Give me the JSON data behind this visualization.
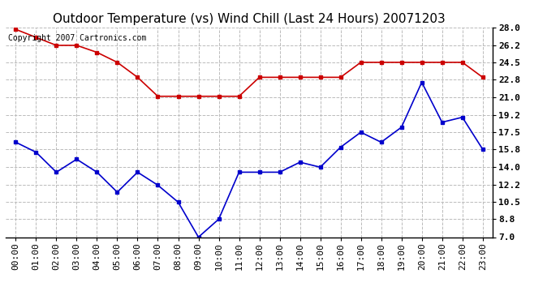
{
  "title": "Outdoor Temperature (vs) Wind Chill (Last 24 Hours) 20071203",
  "copyright_text": "Copyright 2007 Cartronics.com",
  "hours": [
    "00:00",
    "01:00",
    "02:00",
    "03:00",
    "04:00",
    "05:00",
    "06:00",
    "07:00",
    "08:00",
    "09:00",
    "10:00",
    "11:00",
    "12:00",
    "13:00",
    "14:00",
    "15:00",
    "16:00",
    "17:00",
    "18:00",
    "19:00",
    "20:00",
    "21:00",
    "22:00",
    "23:00"
  ],
  "red_data": [
    27.8,
    27.0,
    26.2,
    26.2,
    25.5,
    24.5,
    23.0,
    21.1,
    21.1,
    21.1,
    21.1,
    21.1,
    23.0,
    23.0,
    23.0,
    23.0,
    23.0,
    24.5,
    24.5,
    24.5,
    24.5,
    24.5,
    24.5,
    23.0
  ],
  "blue_data": [
    16.5,
    15.5,
    13.5,
    14.8,
    13.5,
    11.5,
    13.5,
    12.2,
    10.5,
    7.0,
    8.8,
    13.5,
    13.5,
    13.5,
    14.5,
    14.0,
    16.0,
    17.5,
    16.5,
    18.0,
    22.5,
    18.5,
    19.0,
    15.8
  ],
  "red_color": "#cc0000",
  "blue_color": "#0000cc",
  "bg_color": "#ffffff",
  "grid_color": "#bbbbbb",
  "ylim": [
    7.0,
    28.0
  ],
  "yticks": [
    7.0,
    8.8,
    10.5,
    12.2,
    14.0,
    15.8,
    17.5,
    19.2,
    21.0,
    22.8,
    24.5,
    26.2,
    28.0
  ],
  "title_fontsize": 11,
  "copyright_fontsize": 7,
  "tick_fontsize": 8,
  "marker": "s",
  "marker_size": 3,
  "line_width": 1.2
}
